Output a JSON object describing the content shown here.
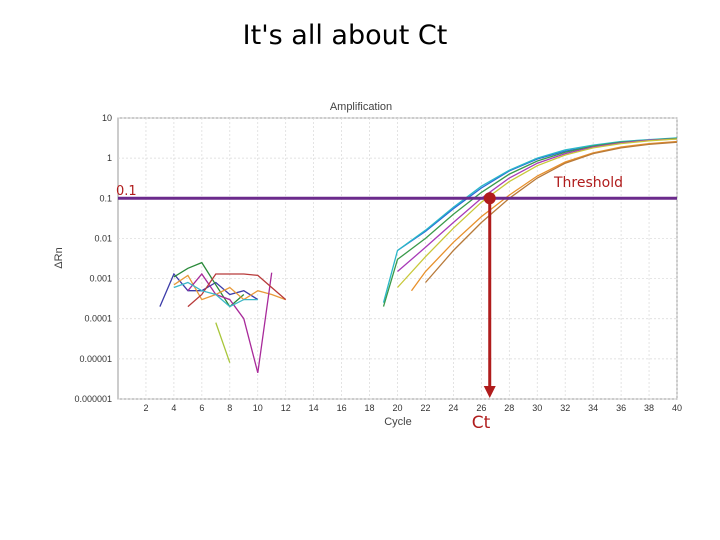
{
  "page": {
    "title": "It's all about Ct"
  },
  "chart_data": {
    "type": "line",
    "title": "Amplification",
    "xlabel": "Cycle",
    "ylabel": "ΔRn",
    "xlim": [
      0,
      40
    ],
    "ylim": [
      1e-06,
      10
    ],
    "yscale": "log",
    "x_ticks": [
      2,
      4,
      6,
      8,
      10,
      12,
      14,
      16,
      18,
      20,
      22,
      24,
      26,
      28,
      30,
      32,
      34,
      36,
      38,
      40
    ],
    "y_ticks": [
      {
        "value": 10,
        "label": "10"
      },
      {
        "value": 1,
        "label": "1"
      },
      {
        "value": 0.1,
        "label": "0.1"
      },
      {
        "value": 0.01,
        "label": "0.01"
      },
      {
        "value": 0.001,
        "label": "0.001"
      },
      {
        "value": 0.0001,
        "label": "0.0001"
      },
      {
        "value": 1e-05,
        "label": "0.00001"
      },
      {
        "value": 1e-06,
        "label": "0.000001"
      }
    ],
    "grid": true,
    "threshold": {
      "value": 0.1,
      "label": "Threshold",
      "value_label": "0.1",
      "color": "#6b2a8c"
    },
    "ct_marker": {
      "x": 26.6,
      "label": "Ct",
      "color": "#b01c1c"
    },
    "series": [
      {
        "color": "#3c3ca8",
        "x": [
          3,
          4,
          5,
          6,
          7,
          8,
          9,
          10
        ],
        "y": [
          0.0002,
          0.0013,
          0.0005,
          0.0005,
          0.0008,
          0.0004,
          0.0005,
          0.0003
        ]
      },
      {
        "color": "#2a8a3a",
        "x": [
          4,
          5,
          6,
          7,
          8,
          9
        ],
        "y": [
          0.0011,
          0.0018,
          0.0025,
          0.0007,
          0.0002,
          0.0004
        ]
      },
      {
        "color": "#e89a3a",
        "x": [
          4,
          5,
          6,
          7,
          8,
          9,
          10,
          11,
          12
        ],
        "y": [
          0.0007,
          0.0012,
          0.0003,
          0.0004,
          0.0006,
          0.0003,
          0.0005,
          0.0004,
          0.0003
        ]
      },
      {
        "color": "#a82a9a",
        "x": [
          5,
          6,
          7,
          8,
          9,
          10,
          11
        ],
        "y": [
          0.0005,
          0.0013,
          0.0004,
          0.0003,
          0.0001,
          4.5e-06,
          0.0014
        ]
      },
      {
        "color": "#b83a3a",
        "x": [
          5,
          6,
          7,
          8,
          9,
          10,
          11,
          12
        ],
        "y": [
          0.0002,
          0.0004,
          0.0013,
          0.0013,
          0.0013,
          0.0012,
          0.0006,
          0.0003
        ]
      },
      {
        "color": "#a8c63a",
        "x": [
          7,
          8
        ],
        "y": [
          8e-05,
          8e-06
        ]
      },
      {
        "color": "#3ab8c8",
        "x": [
          4,
          5,
          6,
          7,
          8,
          9,
          10
        ],
        "y": [
          0.0006,
          0.0008,
          0.0005,
          0.0004,
          0.0002,
          0.0003,
          0.0003
        ]
      },
      {
        "color": "#2a6ad8",
        "x": [
          20,
          22,
          24,
          26,
          28,
          30,
          32,
          34,
          36,
          38,
          40
        ],
        "y": [
          0.005,
          0.015,
          0.055,
          0.18,
          0.48,
          0.95,
          1.5,
          2.0,
          2.5,
          2.8,
          3.1
        ]
      },
      {
        "color": "#2ab8c8",
        "x": [
          19,
          20,
          22,
          24,
          26,
          28,
          30,
          32,
          34,
          36,
          38,
          40
        ],
        "y": [
          0.00025,
          0.005,
          0.016,
          0.06,
          0.2,
          0.5,
          1.0,
          1.6,
          2.1,
          2.6,
          2.9,
          3.2
        ]
      },
      {
        "color": "#3a9a4a",
        "x": [
          19,
          20,
          22,
          24,
          26,
          28,
          30,
          32,
          34,
          36,
          38,
          40
        ],
        "y": [
          0.0002,
          0.003,
          0.01,
          0.04,
          0.14,
          0.4,
          0.85,
          1.4,
          2.0,
          2.5,
          2.8,
          3.1
        ]
      },
      {
        "color": "#a83ab8",
        "x": [
          20,
          22,
          24,
          26,
          28,
          30,
          32,
          34,
          36,
          38,
          40
        ],
        "y": [
          0.0015,
          0.006,
          0.025,
          0.1,
          0.32,
          0.75,
          1.3,
          1.9,
          2.4,
          2.8,
          3.0
        ]
      },
      {
        "color": "#c8c83a",
        "x": [
          20,
          22,
          24,
          26,
          28,
          30,
          32,
          34,
          36,
          38,
          40
        ],
        "y": [
          0.0006,
          0.0035,
          0.018,
          0.08,
          0.26,
          0.65,
          1.2,
          1.8,
          2.3,
          2.7,
          3.0
        ]
      },
      {
        "color": "#e8902a",
        "x": [
          21,
          22,
          24,
          26,
          28,
          30,
          32,
          34,
          36,
          38,
          40
        ],
        "y": [
          0.0005,
          0.0015,
          0.008,
          0.035,
          0.12,
          0.36,
          0.8,
          1.35,
          1.9,
          2.3,
          2.6
        ]
      },
      {
        "color": "#b87a3a",
        "x": [
          22,
          24,
          26,
          28,
          30,
          32,
          34,
          36,
          38,
          40
        ],
        "y": [
          0.0008,
          0.005,
          0.025,
          0.1,
          0.32,
          0.75,
          1.3,
          1.8,
          2.2,
          2.5
        ]
      }
    ]
  }
}
